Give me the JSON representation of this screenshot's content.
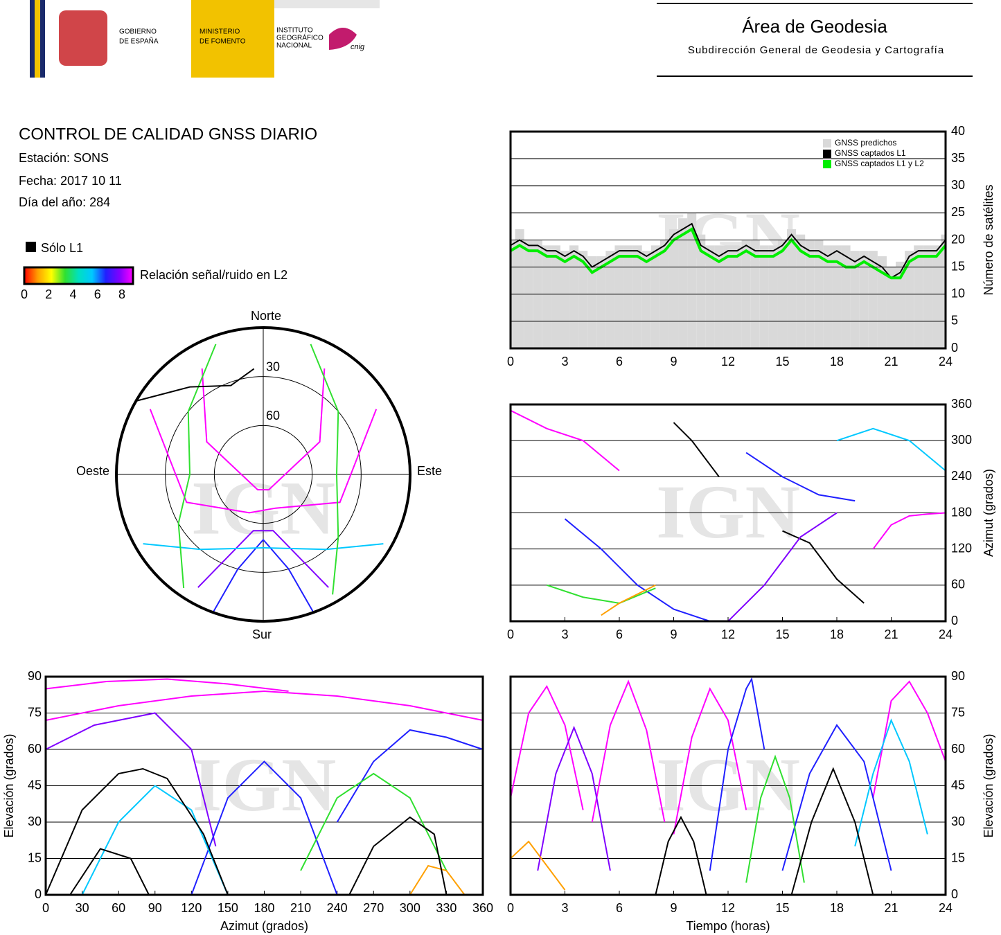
{
  "header": {
    "gobierno": [
      "GOBIERNO",
      "DE ESPAÑA"
    ],
    "ministerio": [
      "MINISTERIO",
      "DE FOMENTO"
    ],
    "instituto": [
      "INSTITUTO",
      "GEOGRÁFICO",
      "NACIONAL"
    ],
    "cnig": "cnig",
    "area": "Área de Geodesia",
    "subdireccion": "Subdirección General de Geodesia y Cartografía"
  },
  "report": {
    "title": "CONTROL DE CALIDAD GNSS DIARIO",
    "station": "Estación: SONS",
    "date": "Fecha: 2017 10 11",
    "doy": "Día del año: 284",
    "only_l1": "Sólo L1",
    "only_l1_color": "#000000",
    "snr_label": "Relación señal/ruido en L2",
    "snr_ticks": [
      0,
      2,
      4,
      6,
      8
    ],
    "snr_colors": [
      "#ff0000",
      "#ffa000",
      "#ffff00",
      "#30e030",
      "#00e0c0",
      "#00c8ff",
      "#2020ff",
      "#8000ff",
      "#ff00ff"
    ]
  },
  "watermark": "IGN",
  "chart_data": [
    {
      "type": "count",
      "ylabel": "Número de satélites",
      "legend": "upper right",
      "grid": true,
      "x": [
        0,
        0.5,
        1,
        1.5,
        2,
        2.5,
        3,
        3.5,
        4,
        4.5,
        5,
        5.5,
        6,
        6.5,
        7,
        7.5,
        8,
        8.5,
        9,
        9.5,
        10,
        10.5,
        11,
        11.5,
        12,
        12.5,
        13,
        13.5,
        14,
        14.5,
        15,
        15.5,
        16,
        16.5,
        17,
        17.5,
        18,
        18.5,
        19,
        19.5,
        20,
        20.5,
        21,
        21.5,
        22,
        22.5,
        23,
        23.5,
        24
      ],
      "xlim": [
        0,
        24
      ],
      "xticks": [
        0,
        3,
        6,
        9,
        12,
        15,
        18,
        21,
        24
      ],
      "ylim": [
        0,
        40
      ],
      "yticks": [
        0,
        5,
        10,
        15,
        20,
        25,
        30,
        35,
        40
      ],
      "series": [
        {
          "name": "GNSS predichos",
          "color": "#d9d9d9",
          "style": "bars",
          "values": [
            20,
            22,
            20,
            20,
            19,
            19,
            18,
            19,
            18,
            17,
            17,
            18,
            19,
            19,
            19,
            18,
            19,
            20,
            22,
            24,
            25,
            21,
            19,
            19,
            19,
            19,
            20,
            20,
            19,
            19,
            20,
            22,
            21,
            20,
            20,
            19,
            19,
            19,
            18,
            18,
            18,
            17,
            15,
            16,
            18,
            19,
            19,
            19,
            21
          ]
        },
        {
          "name": "GNSS captados L1",
          "color": "#000000",
          "style": "line",
          "values": [
            19,
            20,
            19,
            19,
            18,
            18,
            17,
            18,
            17,
            15,
            16,
            17,
            18,
            18,
            18,
            17,
            18,
            19,
            21,
            22,
            23,
            19,
            18,
            17,
            18,
            18,
            19,
            18,
            18,
            18,
            19,
            21,
            19,
            18,
            18,
            17,
            18,
            17,
            16,
            17,
            16,
            15,
            13,
            14,
            17,
            18,
            18,
            18,
            20
          ]
        },
        {
          "name": "GNSS captados L1 y L2",
          "color": "#00ee00",
          "style": "line",
          "values": [
            18,
            19,
            18,
            18,
            17,
            17,
            16,
            17,
            16,
            14,
            15,
            16,
            17,
            17,
            17,
            16,
            17,
            18,
            20,
            21,
            22,
            18,
            17,
            16,
            17,
            17,
            18,
            17,
            17,
            17,
            18,
            20,
            18,
            17,
            17,
            16,
            16,
            15,
            15,
            16,
            15,
            14,
            13,
            13,
            16,
            17,
            17,
            17,
            19
          ]
        }
      ]
    },
    {
      "type": "track",
      "ylabel": "Azimut (grados)",
      "grid": true,
      "xlim": [
        0,
        24
      ],
      "xticks": [
        0,
        3,
        6,
        9,
        12,
        15,
        18,
        21,
        24
      ],
      "ylim": [
        0,
        360
      ],
      "yticks": [
        0,
        60,
        120,
        180,
        240,
        300,
        360
      ],
      "series": [
        {
          "color": "#000000",
          "x": [
            9,
            10,
            11,
            11.5
          ],
          "values": [
            330,
            300,
            260,
            240
          ]
        },
        {
          "color": "#000000",
          "x": [
            15,
            16.5,
            18,
            19.5
          ],
          "values": [
            150,
            130,
            70,
            30
          ]
        },
        {
          "color": "#ff00ff",
          "x": [
            0,
            2,
            4,
            6
          ],
          "values": [
            350,
            320,
            300,
            250
          ]
        },
        {
          "color": "#2020ff",
          "x": [
            3,
            5,
            7,
            9,
            11
          ],
          "values": [
            170,
            120,
            60,
            20,
            0
          ]
        },
        {
          "color": "#8000ff",
          "x": [
            12,
            14,
            16,
            18
          ],
          "values": [
            0,
            60,
            140,
            180
          ]
        },
        {
          "color": "#00c8ff",
          "x": [
            18,
            20,
            22,
            24
          ],
          "values": [
            300,
            320,
            300,
            250
          ]
        },
        {
          "color": "#30e030",
          "x": [
            2,
            4,
            6,
            8
          ],
          "values": [
            60,
            40,
            30,
            55
          ]
        },
        {
          "color": "#ff00ff",
          "x": [
            20,
            21,
            22,
            23,
            24
          ],
          "values": [
            120,
            160,
            175,
            178,
            180
          ]
        },
        {
          "color": "#2020ff",
          "x": [
            13,
            15,
            17,
            19
          ],
          "values": [
            280,
            240,
            210,
            200
          ]
        },
        {
          "color": "#ffa000",
          "x": [
            5,
            6,
            7,
            8
          ],
          "values": [
            10,
            30,
            45,
            60
          ]
        }
      ]
    },
    {
      "type": "track",
      "xlabel": "Azimut (grados)",
      "ylabel": "Elevación (grados)",
      "yaxis": "left",
      "grid": true,
      "xlim": [
        0,
        360
      ],
      "xticks": [
        0,
        30,
        60,
        90,
        120,
        150,
        180,
        210,
        240,
        270,
        300,
        330,
        360
      ],
      "ylim": [
        0,
        90
      ],
      "yticks": [
        0,
        15,
        30,
        45,
        60,
        75,
        90
      ],
      "series": [
        {
          "color": "#ff00ff",
          "x": [
            0,
            60,
            120,
            180,
            240,
            300,
            360
          ],
          "values": [
            72,
            78,
            82,
            84,
            82,
            78,
            72
          ]
        },
        {
          "color": "#ff00ff",
          "x": [
            0,
            50,
            100,
            150,
            200
          ],
          "values": [
            85,
            88,
            89,
            87,
            84
          ]
        },
        {
          "color": "#8000ff",
          "x": [
            0,
            40,
            90,
            120,
            140
          ],
          "values": [
            60,
            70,
            75,
            60,
            20
          ]
        },
        {
          "color": "#2020ff",
          "x": [
            120,
            150,
            180,
            210,
            240
          ],
          "values": [
            0,
            40,
            55,
            40,
            0
          ]
        },
        {
          "color": "#2020ff",
          "x": [
            240,
            270,
            300,
            330,
            360
          ],
          "values": [
            30,
            55,
            68,
            65,
            60
          ]
        },
        {
          "color": "#00c8ff",
          "x": [
            30,
            60,
            90,
            120,
            150
          ],
          "values": [
            0,
            30,
            45,
            35,
            0
          ]
        },
        {
          "color": "#30e030",
          "x": [
            210,
            240,
            270,
            300,
            330
          ],
          "values": [
            10,
            40,
            50,
            40,
            10
          ]
        },
        {
          "color": "#ffa000",
          "x": [
            300,
            315,
            330,
            345
          ],
          "values": [
            0,
            12,
            10,
            0
          ]
        },
        {
          "color": "#000000",
          "x": [
            0,
            30,
            60,
            80,
            100,
            130,
            150
          ],
          "values": [
            0,
            35,
            50,
            52,
            48,
            25,
            0
          ]
        },
        {
          "color": "#000000",
          "x": [
            250,
            270,
            300,
            320,
            330
          ],
          "values": [
            0,
            20,
            32,
            25,
            0
          ]
        },
        {
          "color": "#000000",
          "x": [
            20,
            45,
            70,
            85
          ],
          "values": [
            0,
            19,
            15,
            0
          ]
        }
      ]
    },
    {
      "type": "track",
      "xlabel": "Tiempo (horas)",
      "ylabel": "Elevación (grados)",
      "grid": true,
      "xlim": [
        0,
        24
      ],
      "xticks": [
        0,
        3,
        6,
        9,
        12,
        15,
        18,
        21,
        24
      ],
      "ylim": [
        0,
        90
      ],
      "yticks": [
        0,
        15,
        30,
        45,
        60,
        75,
        90
      ],
      "series": [
        {
          "color": "#ff00ff",
          "x": [
            0,
            1,
            2,
            3,
            4
          ],
          "values": [
            40,
            75,
            86,
            70,
            35
          ]
        },
        {
          "color": "#ff00ff",
          "x": [
            4.5,
            5.5,
            6.5,
            7.5,
            8.5
          ],
          "values": [
            30,
            70,
            88,
            68,
            30
          ]
        },
        {
          "color": "#ff00ff",
          "x": [
            9,
            10,
            11,
            12,
            13
          ],
          "values": [
            25,
            65,
            85,
            72,
            35
          ]
        },
        {
          "color": "#ff00ff",
          "x": [
            20,
            21,
            22,
            23,
            24
          ],
          "values": [
            40,
            80,
            88,
            75,
            55
          ]
        },
        {
          "color": "#8000ff",
          "x": [
            1.5,
            2.5,
            3.5,
            4.5,
            5.5
          ],
          "values": [
            10,
            50,
            69,
            50,
            10
          ]
        },
        {
          "color": "#2020ff",
          "x": [
            11,
            12,
            13,
            13.3,
            14
          ],
          "values": [
            10,
            60,
            85,
            89,
            60
          ]
        },
        {
          "color": "#2020ff",
          "x": [
            15,
            16.5,
            18,
            19.5,
            21
          ],
          "values": [
            10,
            50,
            70,
            55,
            10
          ]
        },
        {
          "color": "#00c8ff",
          "x": [
            19,
            20,
            21,
            22,
            23
          ],
          "values": [
            20,
            50,
            72,
            55,
            25
          ]
        },
        {
          "color": "#30e030",
          "x": [
            13,
            13.8,
            14.6,
            15.4,
            16.2
          ],
          "values": [
            5,
            40,
            57,
            40,
            5
          ]
        },
        {
          "color": "#ffa000",
          "x": [
            0,
            1,
            2,
            3
          ],
          "values": [
            15,
            22,
            12,
            2
          ]
        },
        {
          "color": "#000000",
          "x": [
            8,
            8.7,
            9.4,
            10.1,
            10.8
          ],
          "values": [
            0,
            22,
            32,
            22,
            0
          ]
        },
        {
          "color": "#000000",
          "x": [
            15.5,
            16.6,
            17.8,
            19,
            20
          ],
          "values": [
            0,
            30,
            52,
            30,
            0
          ]
        }
      ]
    },
    {
      "type": "polar",
      "north": "Norte",
      "south": "Sur",
      "east": "Este",
      "west": "Oeste",
      "rticks": [
        30,
        60
      ],
      "series": [
        {
          "color": "#ff00ff",
          "azimuth": [
            300,
            250,
            200,
            160,
            110,
            60
          ],
          "elevation": [
            10,
            40,
            65,
            68,
            40,
            10
          ]
        },
        {
          "color": "#ff00ff",
          "azimuth": [
            330,
            300,
            200,
            160,
            60,
            30
          ],
          "elevation": [
            15,
            50,
            80,
            80,
            50,
            15
          ]
        },
        {
          "color": "#8000ff",
          "azimuth": [
            150,
            170,
            190,
            210
          ],
          "elevation": [
            10,
            55,
            55,
            10
          ]
        },
        {
          "color": "#2020ff",
          "azimuth": [
            200,
            195,
            180,
            165,
            160
          ],
          "elevation": [
            0,
            30,
            50,
            30,
            0
          ]
        },
        {
          "color": "#00c8ff",
          "azimuth": [
            240,
            220,
            180,
            140,
            120
          ],
          "elevation": [
            5,
            30,
            45,
            30,
            5
          ]
        },
        {
          "color": "#30e030",
          "azimuth": [
            340,
            310,
            270,
            240,
            215
          ],
          "elevation": [
            5,
            30,
            45,
            30,
            5
          ]
        },
        {
          "color": "#30e030",
          "azimuth": [
            20,
            50,
            90,
            130,
            150
          ],
          "elevation": [
            5,
            30,
            45,
            30,
            5
          ]
        },
        {
          "color": "#000000",
          "azimuth": [
            300,
            320,
            340,
            355
          ],
          "elevation": [
            0,
            20,
            32,
            25
          ]
        }
      ]
    }
  ]
}
